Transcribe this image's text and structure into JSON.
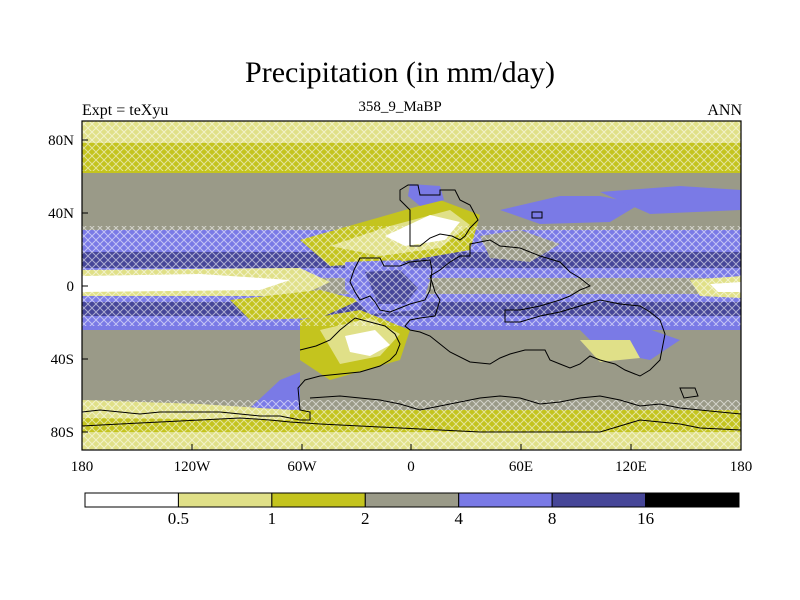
{
  "title": "Precipitation (in mm/day)",
  "left_label": "Expt = teXyu",
  "center_label": "358_9_MaBP",
  "right_label": "ANN",
  "colors": {
    "lt0_5": "#ffffff",
    "0_5to1": "#e0e088",
    "1to2": "#c4c41e",
    "2to4": "#9a9a88",
    "4to8": "#7a7ae6",
    "8to16": "#464698",
    "gt16": "#000000",
    "coast": "#000000"
  },
  "map": {
    "projection": "cylindrical-equidistant",
    "lon_range": [
      -180,
      180
    ],
    "lat_range": [
      -90,
      90
    ],
    "x_ticks": [
      "180",
      "120W",
      "60W",
      "0",
      "60E",
      "120E",
      "180"
    ],
    "y_ticks": [
      "80N",
      "40N",
      "0",
      "40S",
      "80S"
    ]
  },
  "colorbar": {
    "labels": [
      "0.5",
      "1",
      "2",
      "4",
      "8",
      "16"
    ],
    "bins": [
      "lt0_5",
      "0_5to1",
      "1to2",
      "2to4",
      "4to8",
      "8to16",
      "gt16"
    ]
  }
}
